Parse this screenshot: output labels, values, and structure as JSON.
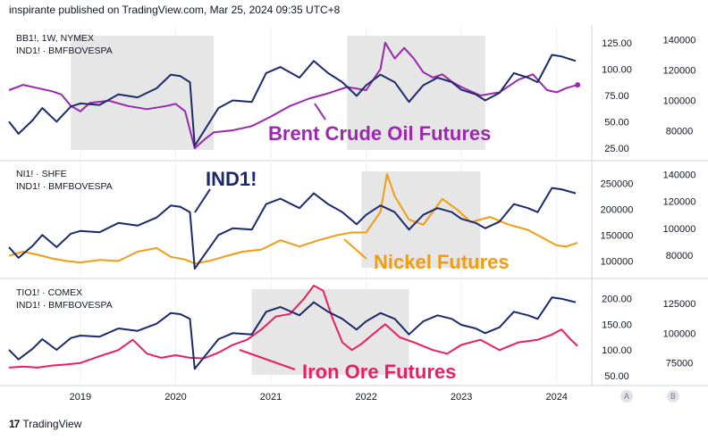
{
  "header": {
    "text": "inspirante published on TradingView.com, Mar 25, 2024 09:35 UTC+8"
  },
  "footer": {
    "brand": "TradingView",
    "logo_glyph": "17"
  },
  "scale_buttons": {
    "a": "A",
    "b": "B"
  },
  "colors": {
    "ind": "#1b2a6b",
    "brent": "#9c27b0",
    "nickel": "#f39c12",
    "iron": "#e91e63",
    "shade": "#e6e6e6",
    "grid": "#eceff4"
  },
  "chart_data": [
    {
      "type": "line",
      "symbols": [
        "BB1!, 1W, NYMEX",
        "IND1! · BMFBOVESPA"
      ],
      "annotation": "Brent Crude Oil Futures",
      "left_ticks": [
        "125.00",
        "100.00",
        "75.00",
        "50.00",
        "25.00"
      ],
      "left_ylim": [
        20,
        135
      ],
      "right_ticks": [
        "140000",
        "120000",
        "100000",
        "80000"
      ],
      "right_ylim": [
        65000,
        145000
      ],
      "shaded_ranges": [
        [
          2018.9,
          2020.4
        ],
        [
          2021.8,
          2023.25
        ]
      ],
      "series": [
        {
          "name": "Brent Crude Oil Futures",
          "axis": "left",
          "x": [
            2018.25,
            2018.4,
            2018.55,
            2018.7,
            2018.8,
            2018.9,
            2019.0,
            2019.1,
            2019.3,
            2019.5,
            2019.7,
            2019.9,
            2020.0,
            2020.1,
            2020.2,
            2020.3,
            2020.4,
            2020.6,
            2020.8,
            2021.0,
            2021.2,
            2021.4,
            2021.6,
            2021.8,
            2022.0,
            2022.15,
            2022.2,
            2022.3,
            2022.4,
            2022.5,
            2022.6,
            2022.7,
            2022.8,
            2022.9,
            2023.0,
            2023.2,
            2023.4,
            2023.6,
            2023.75,
            2023.9,
            2024.0,
            2024.1,
            2024.22
          ],
          "values": [
            80,
            85,
            82,
            79,
            76,
            65,
            60,
            68,
            70,
            65,
            62,
            65,
            67,
            60,
            25,
            33,
            40,
            42,
            46,
            55,
            65,
            72,
            77,
            83,
            80,
            100,
            125,
            110,
            120,
            110,
            97,
            92,
            95,
            88,
            83,
            75,
            78,
            90,
            95,
            80,
            78,
            82,
            85
          ]
        },
        {
          "name": "IND1!",
          "axis": "right",
          "x": [
            2018.25,
            2018.35,
            2018.5,
            2018.6,
            2018.75,
            2018.9,
            2019.0,
            2019.2,
            2019.4,
            2019.6,
            2019.8,
            2019.95,
            2020.05,
            2020.15,
            2020.2,
            2020.3,
            2020.45,
            2020.6,
            2020.8,
            2020.95,
            2021.1,
            2021.3,
            2021.45,
            2021.6,
            2021.75,
            2021.9,
            2022.0,
            2022.15,
            2022.3,
            2022.45,
            2022.6,
            2022.75,
            2022.9,
            2023.0,
            2023.15,
            2023.25,
            2023.4,
            2023.55,
            2023.7,
            2023.8,
            2023.95,
            2024.05,
            2024.2
          ],
          "values": [
            86000,
            78000,
            87000,
            95000,
            86000,
            96000,
            98000,
            97000,
            104000,
            102000,
            108000,
            117000,
            116000,
            112000,
            70000,
            80000,
            95000,
            100000,
            99000,
            118000,
            122000,
            115000,
            126000,
            118000,
            112000,
            103000,
            110000,
            117000,
            112000,
            99000,
            110000,
            115000,
            112000,
            107000,
            104000,
            100000,
            105000,
            118000,
            115000,
            112000,
            130000,
            129000,
            126000
          ]
        }
      ]
    },
    {
      "type": "line",
      "symbols": [
        "NI1! · SHFE",
        "IND1! · BMFBOVESPA"
      ],
      "annotation": "Nickel Futures",
      "label_ind": "IND1!",
      "left_ticks": [
        "250000",
        "200000",
        "150000",
        "100000"
      ],
      "left_ylim": [
        80000,
        280000
      ],
      "right_ticks": [
        "140000",
        "120000",
        "100000",
        "80000"
      ],
      "right_ylim": [
        68000,
        145000
      ],
      "shaded_ranges": [
        [
          2021.95,
          2023.2
        ]
      ],
      "series": [
        {
          "name": "Nickel Futures",
          "axis": "left",
          "x": [
            2018.25,
            2018.4,
            2018.55,
            2018.7,
            2018.85,
            2019.0,
            2019.2,
            2019.4,
            2019.6,
            2019.8,
            2019.95,
            2020.1,
            2020.2,
            2020.35,
            2020.5,
            2020.7,
            2020.9,
            2021.1,
            2021.3,
            2021.5,
            2021.7,
            2021.85,
            2022.0,
            2022.15,
            2022.22,
            2022.3,
            2022.45,
            2022.6,
            2022.8,
            2022.95,
            2023.1,
            2023.3,
            2023.5,
            2023.7,
            2023.85,
            2024.0,
            2024.1,
            2024.22
          ],
          "values": [
            110000,
            118000,
            112000,
            105000,
            100000,
            97000,
            102000,
            100000,
            118000,
            125000,
            108000,
            103000,
            95000,
            100000,
            108000,
            118000,
            122000,
            140000,
            128000,
            140000,
            150000,
            155000,
            155000,
            195000,
            268000,
            225000,
            180000,
            170000,
            220000,
            200000,
            175000,
            185000,
            170000,
            160000,
            145000,
            130000,
            128000,
            135000
          ]
        },
        {
          "name": "IND1!",
          "axis": "right",
          "x": [
            2018.25,
            2018.35,
            2018.5,
            2018.6,
            2018.75,
            2018.9,
            2019.0,
            2019.2,
            2019.4,
            2019.6,
            2019.8,
            2019.95,
            2020.05,
            2020.15,
            2020.2,
            2020.3,
            2020.45,
            2020.6,
            2020.8,
            2020.95,
            2021.1,
            2021.3,
            2021.45,
            2021.6,
            2021.75,
            2021.9,
            2022.0,
            2022.15,
            2022.3,
            2022.45,
            2022.6,
            2022.75,
            2022.9,
            2023.0,
            2023.15,
            2023.25,
            2023.4,
            2023.55,
            2023.7,
            2023.8,
            2023.95,
            2024.05,
            2024.2
          ],
          "values": [
            86000,
            78000,
            87000,
            95000,
            86000,
            96000,
            98000,
            97000,
            104000,
            102000,
            108000,
            117000,
            116000,
            112000,
            70000,
            80000,
            95000,
            100000,
            99000,
            118000,
            122000,
            115000,
            126000,
            118000,
            112000,
            103000,
            110000,
            117000,
            112000,
            99000,
            110000,
            115000,
            112000,
            107000,
            104000,
            100000,
            105000,
            118000,
            115000,
            112000,
            130000,
            129000,
            126000
          ]
        }
      ]
    },
    {
      "type": "line",
      "symbols": [
        "TIO1! · COMEX",
        "IND1! · BMFBOVESPA"
      ],
      "annotation": "Iron Ore Futures",
      "left_ticks": [
        "200.00",
        "150.00",
        "100.00",
        "50.00"
      ],
      "left_ylim": [
        45,
        225
      ],
      "right_ticks": [
        "125000",
        "100000",
        "75000"
      ],
      "right_ylim": [
        62000,
        140000
      ],
      "shaded_ranges": [
        [
          2020.8,
          2022.45
        ]
      ],
      "x_ticks": [
        "2019",
        "2020",
        "2021",
        "2022",
        "2023",
        "2024"
      ],
      "x_tick_values": [
        2019,
        2020,
        2021,
        2022,
        2023,
        2024
      ],
      "series": [
        {
          "name": "Iron Ore Futures",
          "axis": "left",
          "x": [
            2018.25,
            2018.4,
            2018.55,
            2018.7,
            2018.85,
            2019.0,
            2019.2,
            2019.4,
            2019.55,
            2019.7,
            2019.85,
            2020.0,
            2020.15,
            2020.3,
            2020.45,
            2020.6,
            2020.75,
            2020.9,
            2021.05,
            2021.2,
            2021.35,
            2021.45,
            2021.55,
            2021.65,
            2021.75,
            2021.85,
            2021.95,
            2022.1,
            2022.2,
            2022.35,
            2022.5,
            2022.7,
            2022.85,
            2023.0,
            2023.2,
            2023.4,
            2023.6,
            2023.8,
            2023.95,
            2024.05,
            2024.15,
            2024.22
          ],
          "values": [
            66,
            68,
            66,
            70,
            72,
            75,
            88,
            100,
            120,
            93,
            85,
            90,
            85,
            84,
            95,
            110,
            120,
            140,
            165,
            170,
            200,
            225,
            215,
            160,
            115,
            100,
            112,
            135,
            150,
            125,
            115,
            100,
            93,
            110,
            120,
            100,
            115,
            120,
            130,
            140,
            120,
            108
          ]
        },
        {
          "name": "IND1!",
          "axis": "right",
          "x": [
            2018.25,
            2018.35,
            2018.5,
            2018.6,
            2018.75,
            2018.9,
            2019.0,
            2019.2,
            2019.4,
            2019.6,
            2019.8,
            2019.95,
            2020.05,
            2020.15,
            2020.2,
            2020.3,
            2020.45,
            2020.6,
            2020.8,
            2020.95,
            2021.1,
            2021.3,
            2021.45,
            2021.6,
            2021.75,
            2021.9,
            2022.0,
            2022.15,
            2022.3,
            2022.45,
            2022.6,
            2022.75,
            2022.9,
            2023.0,
            2023.15,
            2023.25,
            2023.4,
            2023.55,
            2023.7,
            2023.8,
            2023.95,
            2024.05,
            2024.2
          ],
          "values": [
            86000,
            78000,
            87000,
            95000,
            86000,
            96000,
            98000,
            97000,
            104000,
            102000,
            108000,
            117000,
            116000,
            112000,
            70000,
            80000,
            95000,
            100000,
            99000,
            118000,
            122000,
            115000,
            126000,
            118000,
            112000,
            103000,
            110000,
            117000,
            112000,
            99000,
            110000,
            115000,
            112000,
            107000,
            104000,
            100000,
            105000,
            118000,
            115000,
            112000,
            130000,
            129000,
            126000
          ]
        }
      ]
    }
  ]
}
